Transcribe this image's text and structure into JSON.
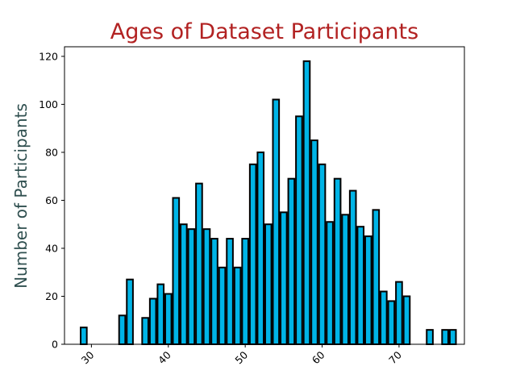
{
  "chart_data": {
    "type": "bar",
    "title": "Ages of Dataset Participants",
    "xlabel": "",
    "ylabel": "Number of Participants",
    "xlim": [
      26.5,
      78.5
    ],
    "ylim": [
      0,
      124
    ],
    "xticks": [
      30,
      40,
      50,
      60,
      70
    ],
    "yticks": [
      0,
      20,
      40,
      60,
      80,
      100,
      120
    ],
    "grid": false,
    "bar_color": "#00b4e6",
    "edge_color": "#000000",
    "x": [
      29,
      34,
      35,
      37,
      38,
      39,
      40,
      41,
      42,
      43,
      44,
      45,
      46,
      47,
      48,
      49,
      50,
      51,
      52,
      53,
      54,
      55,
      56,
      57,
      58,
      59,
      60,
      61,
      62,
      63,
      64,
      65,
      66,
      67,
      68,
      69,
      70,
      71,
      74,
      76,
      77
    ],
    "values": [
      7,
      12,
      27,
      11,
      19,
      25,
      21,
      61,
      50,
      48,
      67,
      48,
      44,
      32,
      44,
      32,
      44,
      75,
      80,
      50,
      102,
      55,
      69,
      95,
      118,
      85,
      75,
      51,
      69,
      54,
      64,
      49,
      45,
      56,
      22,
      18,
      26,
      20,
      6,
      6,
      6
    ]
  }
}
